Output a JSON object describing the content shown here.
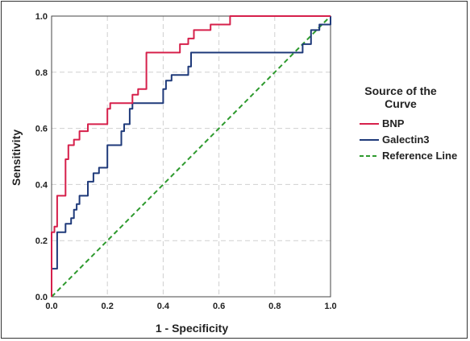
{
  "chart_data": {
    "type": "line",
    "title": "",
    "xlabel": "1 - Specificity",
    "ylabel": "Sensitivity",
    "xlim": [
      0,
      1
    ],
    "ylim": [
      0,
      1
    ],
    "x_ticks": [
      "0.0",
      "0.2",
      "0.4",
      "0.6",
      "0.8",
      "1.0"
    ],
    "y_ticks": [
      "0.0",
      "0.2",
      "0.4",
      "0.6",
      "0.8",
      "1.0"
    ],
    "grid": true,
    "legend": {
      "title": "Source of the Curve",
      "position": "right"
    },
    "series": [
      {
        "name": "BNP",
        "color": "#d6204b",
        "style": "solid",
        "points": [
          [
            0,
            0
          ],
          [
            0,
            0.23
          ],
          [
            0.01,
            0.23
          ],
          [
            0.01,
            0.25
          ],
          [
            0.02,
            0.25
          ],
          [
            0.02,
            0.36
          ],
          [
            0.05,
            0.36
          ],
          [
            0.05,
            0.49
          ],
          [
            0.06,
            0.49
          ],
          [
            0.06,
            0.54
          ],
          [
            0.08,
            0.54
          ],
          [
            0.08,
            0.56
          ],
          [
            0.1,
            0.56
          ],
          [
            0.1,
            0.59
          ],
          [
            0.13,
            0.59
          ],
          [
            0.13,
            0.615
          ],
          [
            0.2,
            0.615
          ],
          [
            0.2,
            0.67
          ],
          [
            0.21,
            0.67
          ],
          [
            0.21,
            0.69
          ],
          [
            0.29,
            0.69
          ],
          [
            0.29,
            0.72
          ],
          [
            0.31,
            0.72
          ],
          [
            0.31,
            0.74
          ],
          [
            0.34,
            0.74
          ],
          [
            0.34,
            0.87
          ],
          [
            0.46,
            0.87
          ],
          [
            0.46,
            0.9
          ],
          [
            0.49,
            0.9
          ],
          [
            0.49,
            0.92
          ],
          [
            0.51,
            0.92
          ],
          [
            0.51,
            0.95
          ],
          [
            0.57,
            0.95
          ],
          [
            0.57,
            0.97
          ],
          [
            0.64,
            0.97
          ],
          [
            0.64,
            1.0
          ],
          [
            1.0,
            1.0
          ]
        ]
      },
      {
        "name": "Galectin3",
        "color": "#1f3a7a",
        "style": "solid",
        "points": [
          [
            0,
            0
          ],
          [
            0,
            0.1
          ],
          [
            0.02,
            0.1
          ],
          [
            0.02,
            0.23
          ],
          [
            0.05,
            0.23
          ],
          [
            0.05,
            0.26
          ],
          [
            0.07,
            0.26
          ],
          [
            0.07,
            0.28
          ],
          [
            0.08,
            0.28
          ],
          [
            0.08,
            0.31
          ],
          [
            0.09,
            0.31
          ],
          [
            0.09,
            0.33
          ],
          [
            0.1,
            0.33
          ],
          [
            0.1,
            0.36
          ],
          [
            0.13,
            0.36
          ],
          [
            0.13,
            0.41
          ],
          [
            0.15,
            0.41
          ],
          [
            0.15,
            0.44
          ],
          [
            0.17,
            0.44
          ],
          [
            0.17,
            0.46
          ],
          [
            0.2,
            0.46
          ],
          [
            0.2,
            0.54
          ],
          [
            0.25,
            0.54
          ],
          [
            0.25,
            0.59
          ],
          [
            0.26,
            0.59
          ],
          [
            0.26,
            0.615
          ],
          [
            0.28,
            0.615
          ],
          [
            0.28,
            0.67
          ],
          [
            0.29,
            0.67
          ],
          [
            0.29,
            0.69
          ],
          [
            0.4,
            0.69
          ],
          [
            0.4,
            0.74
          ],
          [
            0.41,
            0.74
          ],
          [
            0.41,
            0.77
          ],
          [
            0.43,
            0.77
          ],
          [
            0.43,
            0.79
          ],
          [
            0.49,
            0.79
          ],
          [
            0.49,
            0.82
          ],
          [
            0.5,
            0.82
          ],
          [
            0.5,
            0.87
          ],
          [
            0.9,
            0.87
          ],
          [
            0.9,
            0.9
          ],
          [
            0.93,
            0.9
          ],
          [
            0.93,
            0.95
          ],
          [
            0.96,
            0.95
          ],
          [
            0.96,
            0.97
          ],
          [
            1.0,
            0.97
          ],
          [
            1.0,
            1.0
          ]
        ]
      },
      {
        "name": "Reference Line",
        "color": "#2e9a2e",
        "style": "dashed",
        "points": [
          [
            0,
            0
          ],
          [
            1,
            1
          ]
        ]
      }
    ]
  }
}
